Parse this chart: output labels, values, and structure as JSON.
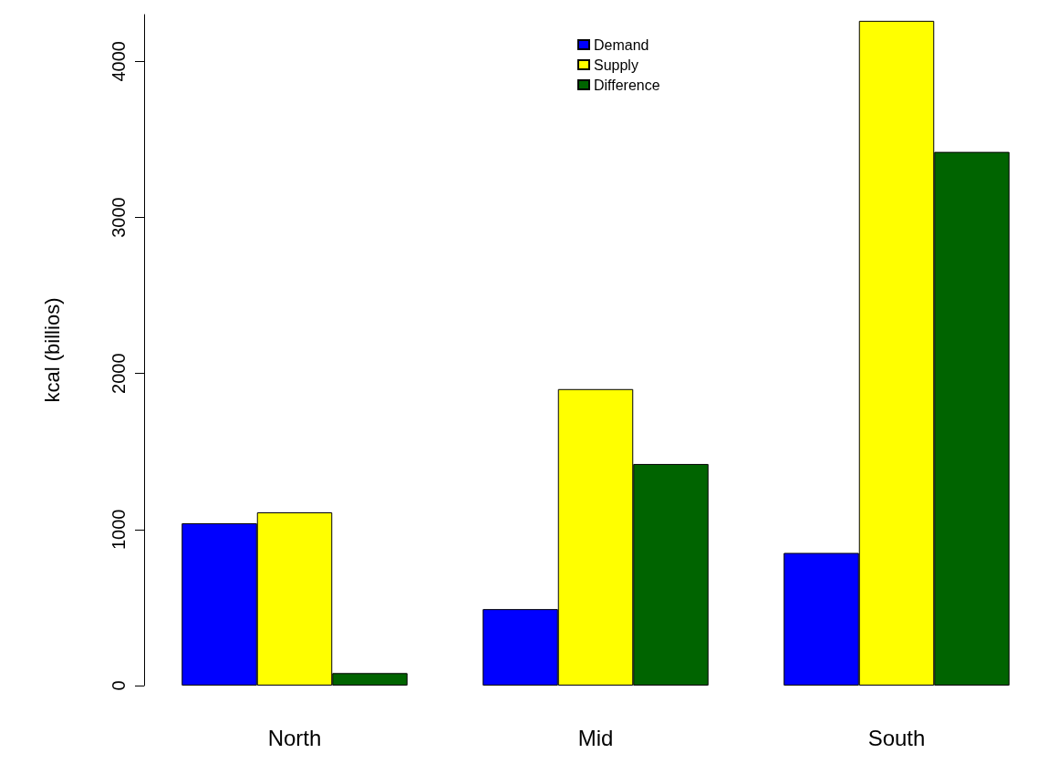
{
  "chart_data": {
    "type": "bar",
    "ylabel": "kcal (billios)",
    "categories": [
      "North",
      "Mid",
      "South"
    ],
    "series": [
      {
        "name": "Demand",
        "color": "#0000ff",
        "values": [
          1040,
          490,
          850
        ]
      },
      {
        "name": "Supply",
        "color": "#ffff00",
        "values": [
          1110,
          1900,
          4260
        ]
      },
      {
        "name": "Difference",
        "color": "#006400",
        "values": [
          80,
          1420,
          3420
        ]
      }
    ],
    "ylim": [
      0,
      4300
    ],
    "yticks": [
      0,
      1000,
      2000,
      3000,
      4000
    ],
    "grid": false,
    "legend": "top"
  }
}
